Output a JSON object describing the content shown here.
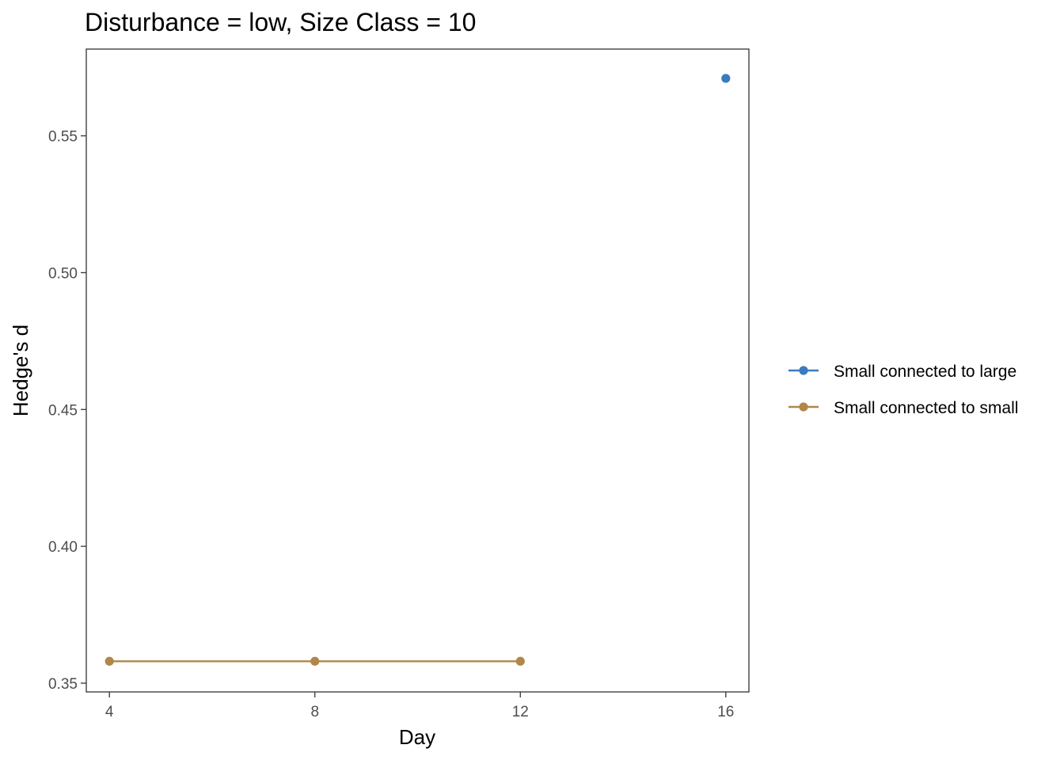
{
  "chart_data": {
    "type": "line",
    "title": "Disturbance = low, Size Class = 10",
    "xlabel": "Day",
    "ylabel": "Hedge's d",
    "xlim": [
      3.55,
      16.45
    ],
    "ylim": [
      0.3468,
      0.5817
    ],
    "x_ticks": [
      4,
      8,
      12,
      16
    ],
    "y_ticks": [
      0.35,
      0.4,
      0.45,
      0.5,
      0.55
    ],
    "y_tick_labels": [
      "0.35",
      "0.40",
      "0.45",
      "0.50",
      "0.55"
    ],
    "grid": false,
    "legend_position": "right",
    "series": [
      {
        "name": "Small connected to large",
        "color": "#3a7bbf",
        "x": [
          16
        ],
        "y": [
          0.571
        ]
      },
      {
        "name": "Small connected to small",
        "color": "#b08748",
        "x": [
          4,
          8,
          12
        ],
        "y": [
          0.358,
          0.358,
          0.358
        ]
      }
    ]
  }
}
